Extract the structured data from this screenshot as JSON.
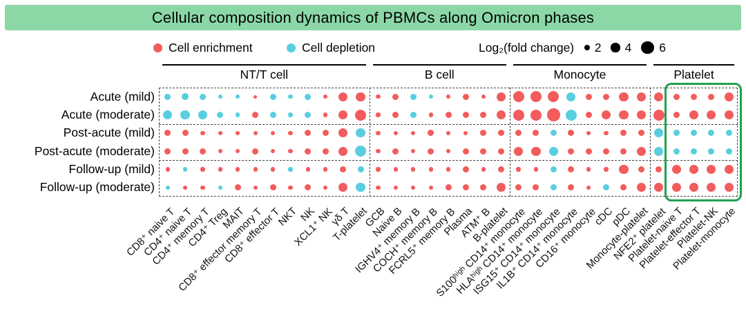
{
  "title": "Cellular composition dynamics of PBMCs along Omicron phases",
  "legend": {
    "enrichment_label": "Cell enrichment",
    "depletion_label": "Cell depletion",
    "size_label": "Log₂(fold change)",
    "size_values": [
      2,
      4,
      6
    ]
  },
  "colors": {
    "title_bg": "#8BD8A6",
    "enrichment": "#F25C5C",
    "depletion": "#58CEDF",
    "highlight_box": "#1FA24D",
    "size_legend_dot": "#000000"
  },
  "chart_data": {
    "type": "bubble-matrix",
    "title": "Cellular composition dynamics of PBMCs along Omicron phases",
    "size_encoding": "Log₂(fold change)",
    "size_ticks": [
      2,
      4,
      6
    ],
    "color_encoding": {
      "positive": "Cell enrichment",
      "negative": "Cell depletion"
    },
    "rows": [
      "Acute (mild)",
      "Acute (moderate)",
      "Post-acute (mild)",
      "Post-acute (moderate)",
      "Follow-up (mild)",
      "Follow-up (moderate)"
    ],
    "columns": [
      "CD8⁺ naive T",
      "CD4⁺ naive T",
      "CD4⁺ memory T",
      "CD4⁺ Treg",
      "MAIT",
      "CD8⁺ effector memory T",
      "CD8⁺ effector T",
      "NKT",
      "NK",
      "XCL1⁺ NK",
      "γδ T",
      "T-platelet",
      "GCB",
      "Naive B",
      "IGHV4⁺ memory B",
      "COCH⁺ memory B",
      "FCRL5⁺ memory B",
      "Plasma",
      "ATM⁺ B",
      "B-platelet",
      "S100ʰⁱᵍʰ CD14⁺ monocyte",
      "HLAʰⁱᵍʰ CD14⁺ monocyte",
      "ISG15⁺ CD14⁺ monocyte",
      "IL1B⁺ CD14⁺ monocyte",
      "CD16⁺ monocyte",
      "cDC",
      "pDC",
      "Monocyte-platelet",
      "NFE2⁺ platelet",
      "Platelet-naive T",
      "Platelet-effector T",
      "Platelet-NK",
      "Platelet-monocyte"
    ],
    "groups": [
      {
        "label": "NT/T cell",
        "start": 0,
        "end": 11
      },
      {
        "label": "B cell",
        "start": 12,
        "end": 19
      },
      {
        "label": "Monocyte",
        "start": 20,
        "end": 27
      },
      {
        "label": "Platelet",
        "start": 28,
        "end": 32
      }
    ],
    "highlight_columns": {
      "start": 29,
      "end": 32
    },
    "value_note": "signed Log2 fold change: positive = enrichment (red), negative = depletion (cyan); magnitude = dot size",
    "matrix": [
      [
        -2.5,
        -3,
        -2.5,
        -1.5,
        -1.5,
        1,
        -2.5,
        -1.5,
        -2.5,
        1.5,
        4,
        4,
        1.5,
        2.5,
        -2.5,
        -1.5,
        1.5,
        2.5,
        1.5,
        4,
        5,
        5,
        5,
        -4,
        2.5,
        2.5,
        4,
        4,
        4,
        2.5,
        2.5,
        2.5,
        4
      ],
      [
        -4,
        -4,
        -4,
        -2.5,
        -1.5,
        2.5,
        -2.5,
        -1.5,
        -2.5,
        1.5,
        4,
        5,
        1.5,
        2.5,
        -2.5,
        1.5,
        2.5,
        2.5,
        2.5,
        4,
        5,
        5,
        6,
        -5,
        2.5,
        4,
        4,
        4,
        5,
        2.5,
        4,
        4,
        4
      ],
      [
        2.5,
        2.5,
        1.5,
        1.5,
        1.5,
        1.5,
        1.5,
        1.5,
        2.5,
        2.5,
        4,
        -4,
        1.5,
        1.5,
        1.5,
        2.5,
        1.5,
        1.5,
        2.5,
        2.5,
        2.5,
        2.5,
        -2.5,
        2.5,
        1.5,
        1.5,
        2.5,
        2.5,
        -4,
        -2.5,
        -2.5,
        -2.5,
        -2.5
      ],
      [
        2.5,
        2.5,
        2.5,
        1.5,
        1.5,
        2.5,
        1.5,
        1.5,
        2.5,
        2.5,
        4,
        -5,
        1.5,
        2.5,
        1.5,
        2.5,
        1.5,
        2.5,
        2.5,
        2.5,
        4,
        4,
        -4,
        2.5,
        2.5,
        2.5,
        2.5,
        4,
        -4,
        -2.5,
        -2.5,
        -2.5,
        -2.5
      ],
      [
        1.5,
        -1.5,
        1.5,
        1.5,
        1.5,
        1.5,
        1.5,
        -1.5,
        1.5,
        1.5,
        2.5,
        -2.5,
        1.5,
        1.5,
        1.5,
        1.5,
        1.5,
        2.5,
        1.5,
        2.5,
        1.5,
        1.5,
        -2.5,
        2.5,
        1.5,
        1.5,
        4,
        2.5,
        2.5,
        4,
        4,
        4,
        4
      ],
      [
        -1.5,
        1.5,
        1.5,
        -1.5,
        2.5,
        1.5,
        2.5,
        1.5,
        2.5,
        1.5,
        4,
        -4,
        1.5,
        1.5,
        1.5,
        1.5,
        2.5,
        2.5,
        2.5,
        4,
        2.5,
        2.5,
        -2.5,
        2.5,
        1.5,
        -2.5,
        2.5,
        4,
        4,
        4,
        4,
        4,
        4
      ]
    ]
  }
}
